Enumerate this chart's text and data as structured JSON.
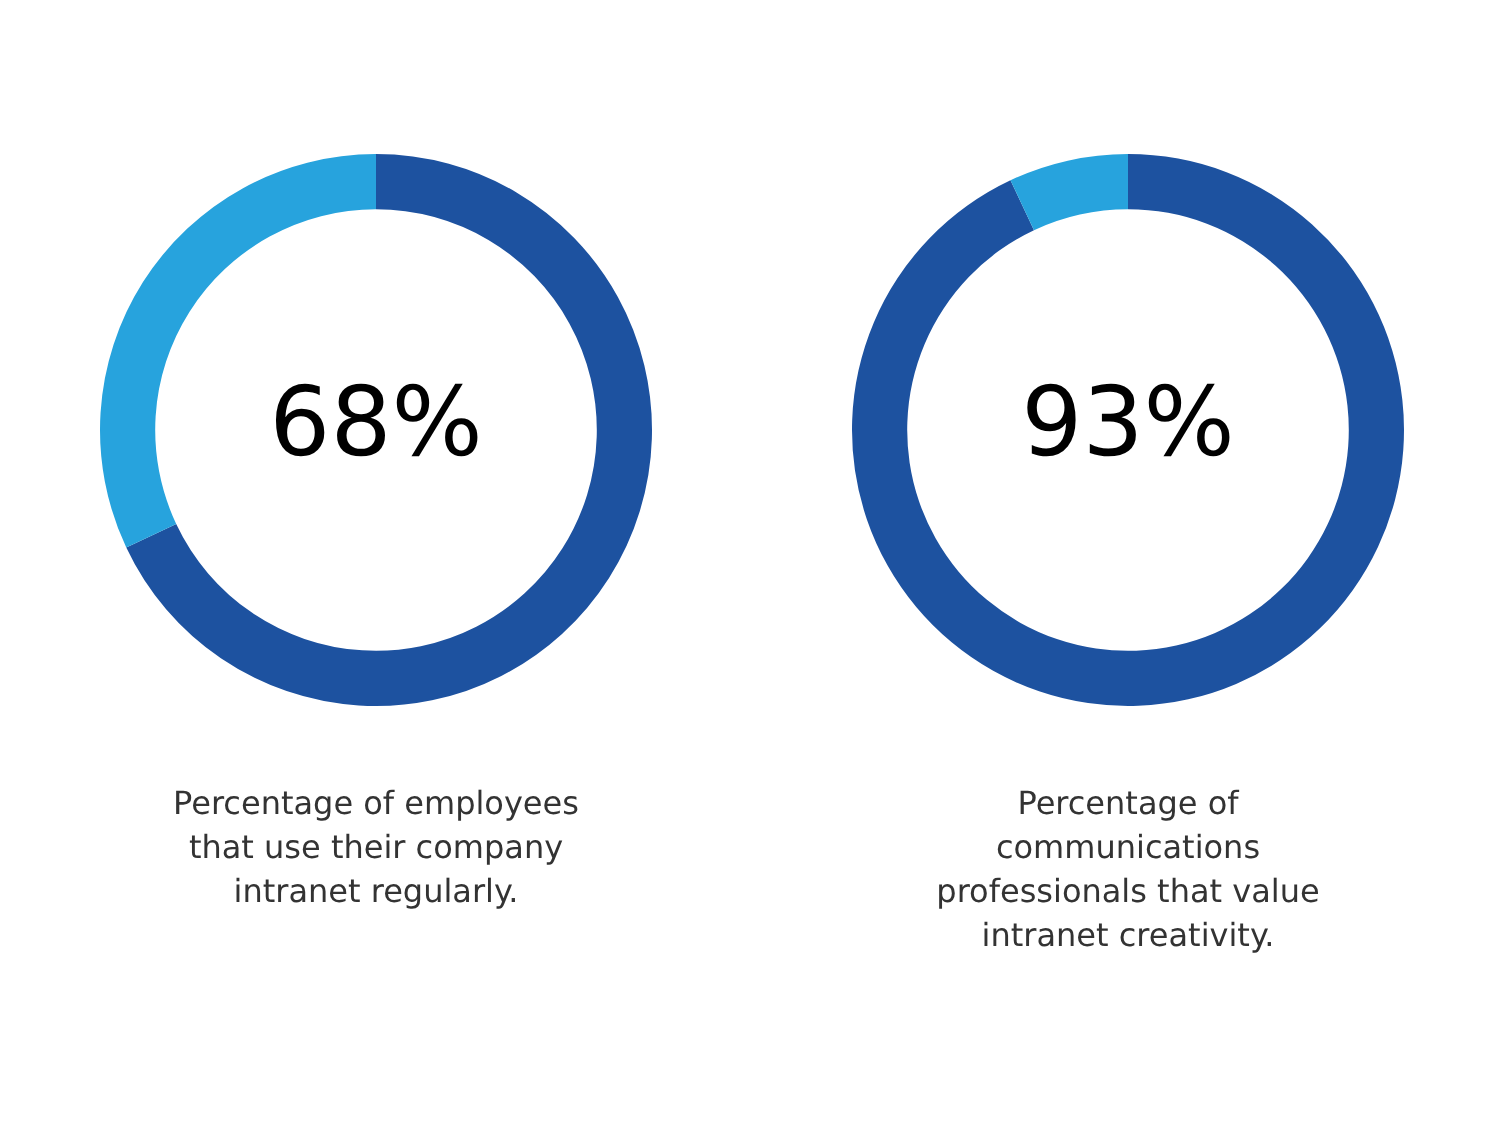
{
  "chart_data": [
    {
      "type": "donut",
      "categories": [
        null,
        null
      ],
      "values": [
        68,
        32
      ],
      "colors": [
        "#1d52a0",
        "#27a3dd"
      ],
      "legend": false,
      "annotations": [
        "68%",
        "Percentage of employees that use their company intranet regularly."
      ]
    },
    {
      "type": "donut",
      "categories": [
        null,
        null
      ],
      "values": [
        93,
        7
      ],
      "colors": [
        "#1d52a0",
        "#27a3dd"
      ],
      "legend": false,
      "annotations": [
        "93%",
        "Percentage of communications professionals that value intranet creativity."
      ]
    }
  ]
}
